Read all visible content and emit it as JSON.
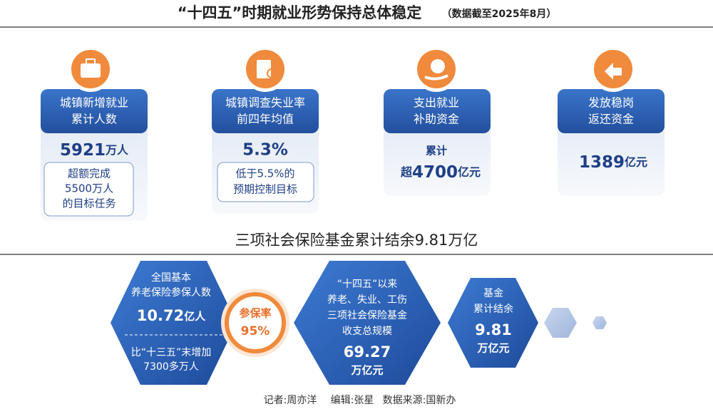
{
  "header": {
    "title": "“十四五”时期就业形势保持总体稳定",
    "subtitle": "（数据截至2025年8月）"
  },
  "cards": [
    {
      "title": [
        "城镇新增就业",
        "累计人数"
      ],
      "value": "5921",
      "unit": "万人",
      "note": [
        "超额完成",
        "5500万人",
        "的目标任务"
      ]
    },
    {
      "title": [
        "城镇调查失业率",
        "前四年均值"
      ],
      "value": "5.3%",
      "note": [
        "低于5.5%的",
        "预期控制目标"
      ]
    },
    {
      "title": [
        "支出就业",
        "补助资金"
      ],
      "prefix": "累计",
      "lead": "超",
      "value": "4700",
      "unit": "亿元"
    },
    {
      "title": [
        "发放稳岗",
        "返还资金"
      ],
      "value": "1389",
      "unit": "亿元"
    }
  ],
  "section": {
    "title": "三项社会保险基金累计结余9.81万亿"
  },
  "hexes": [
    {
      "lines": [
        "全国基本",
        "养老保险参保人数"
      ],
      "value": "10.72",
      "unit": "亿人",
      "lower": [
        "比“十三五”末增加",
        "7300多万人"
      ],
      "badge": [
        "参保率",
        "95%"
      ]
    },
    {
      "lines": [
        "“十四五”以来",
        "养老、失业、工伤",
        "三项社会保险基金",
        "收支总规模"
      ],
      "value": "69.27",
      "unit": "万亿元"
    },
    {
      "lines": [
        "基金",
        "累计结余"
      ],
      "value": "9.81",
      "unit": "万亿元"
    }
  ],
  "footer": [
    "记者:周亦洋",
    "编辑:张星",
    "数据来源:国新办"
  ]
}
